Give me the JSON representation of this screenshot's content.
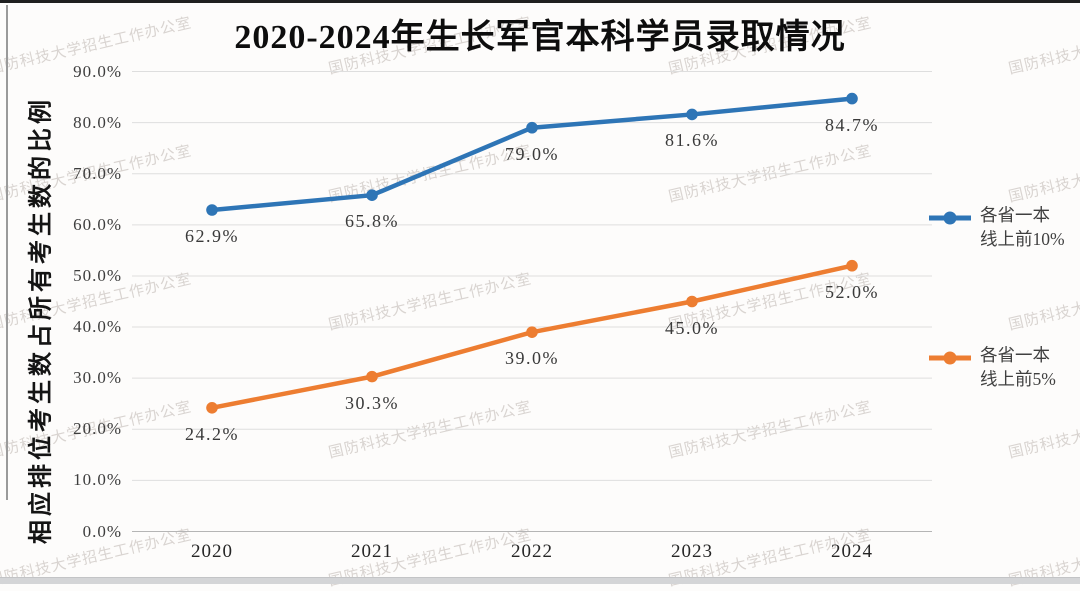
{
  "title": "2020-2024年生长军官本科学员录取情况",
  "watermark": {
    "text": "国防科技大学招生工作办公室"
  },
  "colors": {
    "series_blue": "#2E75B6",
    "series_orange": "#ED7D31",
    "gridline": "#dedede",
    "axis_line": "#b5b5b5"
  },
  "chart_data": {
    "type": "line",
    "title": "2020-2024年生长军官本科学员录取情况",
    "xlabel": "",
    "ylabel": "相应排位考生数占所有考生数的比例",
    "categories": [
      "2020",
      "2021",
      "2022",
      "2023",
      "2024"
    ],
    "series": [
      {
        "name": "各省一本线上前10%",
        "values": [
          62.9,
          65.8,
          79.0,
          81.6,
          84.7
        ],
        "labels": [
          "62.9%",
          "65.8%",
          "79.0%",
          "81.6%",
          "84.7%"
        ],
        "color": "#2E75B6"
      },
      {
        "name": "各省一本线上前5%",
        "values": [
          24.2,
          30.3,
          39.0,
          45.0,
          52.0
        ],
        "labels": [
          "24.2%",
          "30.3%",
          "39.0%",
          "45.0%",
          "52.0%"
        ],
        "color": "#ED7D31"
      }
    ],
    "ylim": [
      0,
      90
    ],
    "ytick_labels": [
      "0.0%",
      "10.0%",
      "20.0%",
      "30.0%",
      "40.0%",
      "50.0%",
      "60.0%",
      "70.0%",
      "80.0%",
      "90.0%"
    ],
    "grid": "horizontal",
    "markers": true,
    "legend_position": "right"
  },
  "legend": {
    "items": [
      {
        "line1": "各省一本",
        "line2": "线上前10%",
        "color": "#2E75B6"
      },
      {
        "line1": "各省一本",
        "line2": "线上前5%",
        "color": "#ED7D31"
      }
    ]
  }
}
